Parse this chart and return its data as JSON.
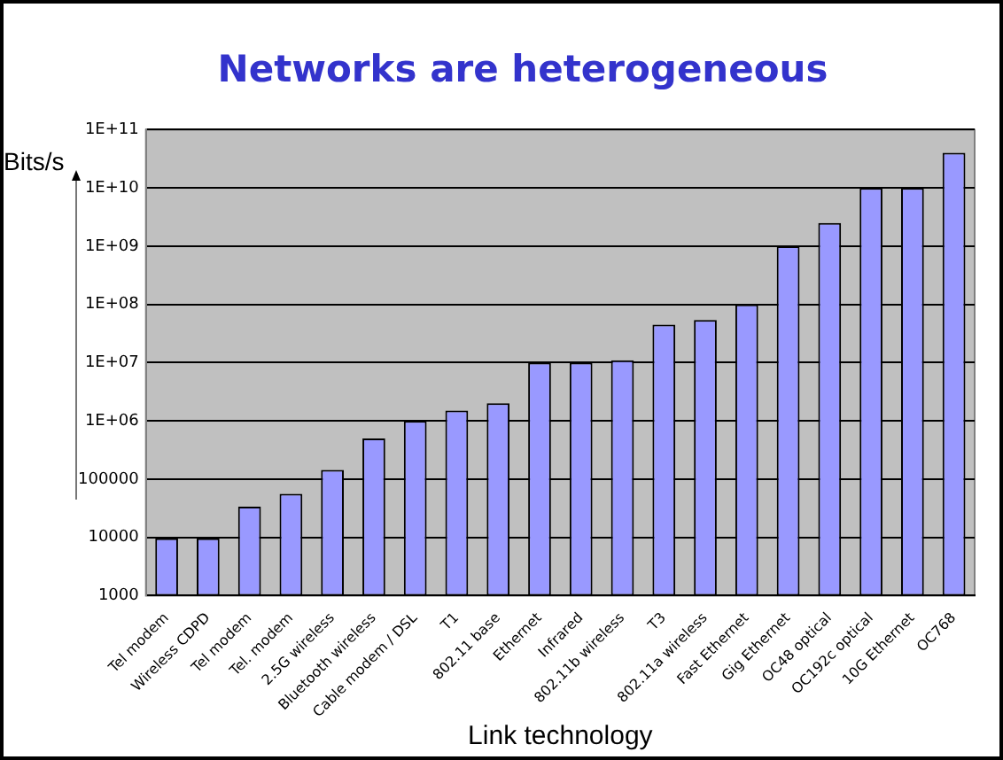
{
  "chart_data": {
    "type": "bar",
    "title": "Networks are heterogeneous",
    "xlabel": "Link technology",
    "ylabel": "Bits/s",
    "categories": [
      "Tel modem",
      "Wireless CDPD",
      "Tel modem",
      "Tel. modem",
      "2.5G wireless",
      "Bluetooth wireless",
      "Cable modem / DSL",
      "T1",
      "802.11 base",
      "Ethernet",
      "Infrared",
      "802.11b wireless",
      "T3",
      "802.11a wireless",
      "Fast Ethernet",
      "Gig Ethernet",
      "OC48 optical",
      "OC192c optical",
      "10G Ethernet",
      "OC768"
    ],
    "values": [
      9600,
      9600,
      33600,
      56000,
      144000,
      500000,
      1000000,
      1500000,
      2000000,
      10000000,
      10000000,
      11000000,
      45000000,
      54000000,
      100000000,
      1000000000,
      2500000000,
      10000000000,
      10000000000,
      40000000000
    ],
    "color": "#9999ff",
    "log": "y",
    "ylim": [
      1000,
      100000000000
    ],
    "yticks": [
      1000,
      10000,
      100000,
      {
        "value": 1000000,
        "label": "1E+06"
      },
      {
        "value": 10000000,
        "label": "1E+07"
      },
      {
        "value": 100000000,
        "label": "1E+08"
      },
      {
        "value": 1000000000,
        "label": "1E+09"
      },
      {
        "value": 10000000000,
        "label": "1E+10"
      },
      {
        "value": 100000000000,
        "label": "1E+11"
      }
    ],
    "grid": "y",
    "legend": false
  }
}
